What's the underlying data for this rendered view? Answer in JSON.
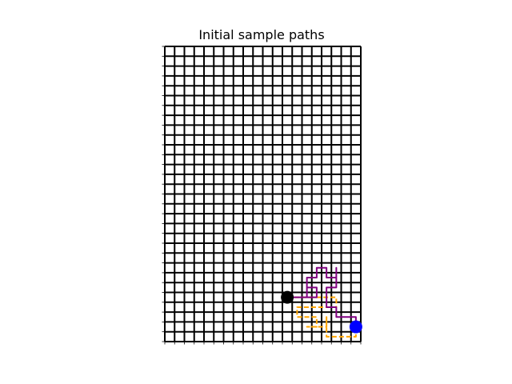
{
  "chart_data": {
    "type": "grid-path",
    "title": "Initial sample paths",
    "grid": {
      "cols": 20,
      "rows": 30,
      "grid_on": true,
      "axis_ticks": true,
      "tick_labels": false
    },
    "start_marker": {
      "cell": [
        12,
        4
      ],
      "color": "#000000"
    },
    "end_marker": {
      "cell": [
        19,
        1
      ],
      "color": "#0000ff"
    },
    "series": [
      {
        "color": "#ffa500",
        "dash": true,
        "path": [
          [
            12,
            4
          ],
          [
            13,
            4
          ],
          [
            14,
            4
          ],
          [
            15,
            4
          ],
          [
            16,
            4
          ],
          [
            17,
            4
          ],
          [
            17,
            3
          ],
          [
            16,
            3
          ],
          [
            15,
            3
          ],
          [
            14,
            3
          ],
          [
            13,
            3
          ],
          [
            13,
            2
          ],
          [
            14,
            2
          ],
          [
            15,
            2
          ],
          [
            15,
            1
          ],
          [
            14,
            1
          ],
          [
            15,
            1
          ],
          [
            16,
            1
          ],
          [
            16,
            2
          ],
          [
            16,
            1
          ],
          [
            16,
            0
          ],
          [
            17,
            0
          ],
          [
            18,
            0
          ],
          [
            19,
            0
          ],
          [
            19,
            1
          ]
        ]
      },
      {
        "color": "#800080",
        "dash": false,
        "path": [
          [
            12,
            4
          ],
          [
            13,
            4
          ],
          [
            14,
            4
          ],
          [
            14,
            5
          ],
          [
            15,
            5
          ],
          [
            15,
            4
          ],
          [
            14,
            4
          ],
          [
            14,
            6
          ],
          [
            15,
            6
          ],
          [
            15,
            7
          ],
          [
            16,
            7
          ],
          [
            16,
            6
          ],
          [
            17,
            6
          ],
          [
            17,
            7
          ],
          [
            17,
            5
          ],
          [
            16,
            5
          ],
          [
            16,
            3
          ],
          [
            17,
            3
          ],
          [
            17,
            2
          ],
          [
            18,
            2
          ],
          [
            19,
            2
          ],
          [
            19,
            1
          ]
        ]
      }
    ]
  }
}
